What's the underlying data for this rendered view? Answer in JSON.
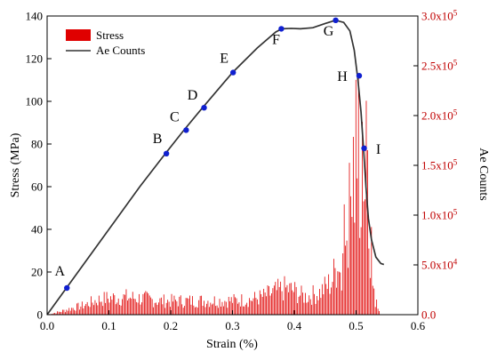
{
  "chart_data": {
    "type": "combo",
    "xlabel": "Strain (%)",
    "ylabel_left": "Stress (MPa)",
    "ylabel_right": "Ae Counts",
    "xlim": [
      0,
      0.6
    ],
    "ylim_left": [
      0,
      140
    ],
    "ylim_right": [
      0,
      300000
    ],
    "x_ticks": [
      "0.0",
      "0.1",
      "0.2",
      "0.3",
      "0.4",
      "0.5",
      "0.6"
    ],
    "y_left_ticks": [
      "0",
      "20",
      "40",
      "60",
      "80",
      "100",
      "120",
      "140"
    ],
    "y_right_ticks": [
      {
        "base": "0.0",
        "exp": ""
      },
      {
        "base": "5.0x10",
        "exp": "4"
      },
      {
        "base": "1.0x10",
        "exp": "5"
      },
      {
        "base": "1.5x10",
        "exp": "5"
      },
      {
        "base": "2.0x10",
        "exp": "5"
      },
      {
        "base": "2.5x10",
        "exp": "5"
      },
      {
        "base": "3.0x10",
        "exp": "5"
      }
    ],
    "legend": {
      "placement": "top-left",
      "entries": [
        {
          "label": "Stress",
          "color": "#e00000",
          "kind": "bar"
        },
        {
          "label": "Ae Counts",
          "color": "#333333",
          "kind": "line"
        }
      ]
    },
    "stress_curve": [
      [
        0.0,
        0
      ],
      [
        0.05,
        20
      ],
      [
        0.1,
        40
      ],
      [
        0.15,
        60
      ],
      [
        0.19,
        75
      ],
      [
        0.22,
        86
      ],
      [
        0.25,
        96.5
      ],
      [
        0.3,
        113.5
      ],
      [
        0.34,
        125
      ],
      [
        0.37,
        132.5
      ],
      [
        0.38,
        134
      ],
      [
        0.395,
        134.2
      ],
      [
        0.41,
        134
      ],
      [
        0.43,
        134.5
      ],
      [
        0.45,
        136.5
      ],
      [
        0.467,
        138
      ],
      [
        0.48,
        137
      ],
      [
        0.49,
        133
      ],
      [
        0.497,
        124
      ],
      [
        0.503,
        110
      ],
      [
        0.508,
        95
      ],
      [
        0.512,
        78
      ],
      [
        0.516,
        60
      ],
      [
        0.52,
        45
      ],
      [
        0.525,
        35
      ],
      [
        0.532,
        27
      ],
      [
        0.54,
        24
      ],
      [
        0.545,
        23.5
      ]
    ],
    "points": [
      {
        "label": "A",
        "x": 0.032,
        "y": 12.5
      },
      {
        "label": "B",
        "x": 0.193,
        "y": 75.5
      },
      {
        "label": "C",
        "x": 0.225,
        "y": 86.5
      },
      {
        "label": "D",
        "x": 0.254,
        "y": 97
      },
      {
        "label": "E",
        "x": 0.301,
        "y": 113.5
      },
      {
        "label": "F",
        "x": 0.379,
        "y": 134
      },
      {
        "label": "G",
        "x": 0.467,
        "y": 138
      },
      {
        "label": "H",
        "x": 0.505,
        "y": 112
      },
      {
        "label": "I",
        "x": 0.513,
        "y": 78
      }
    ],
    "ae_envelope": [
      [
        0.0,
        0
      ],
      [
        0.02,
        4000
      ],
      [
        0.04,
        9000
      ],
      [
        0.06,
        13000
      ],
      [
        0.08,
        20000
      ],
      [
        0.1,
        23000
      ],
      [
        0.13,
        24000
      ],
      [
        0.16,
        22000
      ],
      [
        0.18,
        19000
      ],
      [
        0.22,
        19000
      ],
      [
        0.26,
        19500
      ],
      [
        0.3,
        19500
      ],
      [
        0.33,
        21000
      ],
      [
        0.35,
        25000
      ],
      [
        0.37,
        32000
      ],
      [
        0.385,
        36000
      ],
      [
        0.4,
        33000
      ],
      [
        0.41,
        27000
      ],
      [
        0.42,
        25000
      ],
      [
        0.44,
        30000
      ],
      [
        0.46,
        45000
      ],
      [
        0.47,
        70000
      ],
      [
        0.48,
        110000
      ],
      [
        0.49,
        170000
      ],
      [
        0.497,
        230000
      ],
      [
        0.502,
        262000
      ],
      [
        0.506,
        282000
      ],
      [
        0.51,
        278000
      ],
      [
        0.514,
        250000
      ],
      [
        0.518,
        200000
      ],
      [
        0.522,
        130000
      ],
      [
        0.526,
        70000
      ],
      [
        0.53,
        30000
      ],
      [
        0.535,
        10000
      ],
      [
        0.54,
        0
      ]
    ],
    "point_color": "#1020d0",
    "line_color": "#333333",
    "bar_color": "#e00000"
  }
}
